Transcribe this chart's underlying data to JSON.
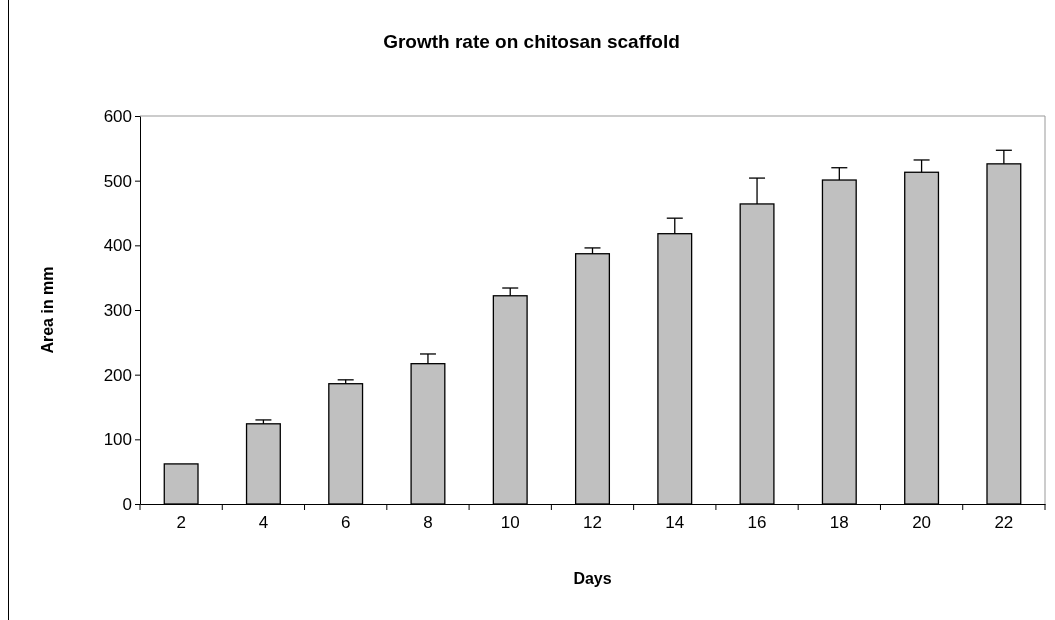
{
  "chart_data": {
    "type": "bar",
    "title": "Growth rate on chitosan scaffold",
    "xlabel": "Days",
    "ylabel": "Area in mm",
    "categories": [
      "2",
      "4",
      "6",
      "8",
      "10",
      "12",
      "14",
      "16",
      "18",
      "20",
      "22"
    ],
    "values": [
      62,
      124,
      186,
      217,
      322,
      387,
      418,
      464,
      501,
      513,
      526
    ],
    "errors": [
      null,
      [
        124,
        130
      ],
      [
        186,
        192
      ],
      [
        217,
        232
      ],
      [
        322,
        334
      ],
      [
        387,
        396
      ],
      [
        418,
        442
      ],
      [
        464,
        504
      ],
      [
        501,
        520
      ],
      [
        513,
        532
      ],
      [
        526,
        547
      ]
    ],
    "color": "#c0c0c0",
    "ylim": [
      0,
      600
    ],
    "yticks": [
      0,
      100,
      200,
      300,
      400,
      500,
      600
    ],
    "grid": false
  }
}
